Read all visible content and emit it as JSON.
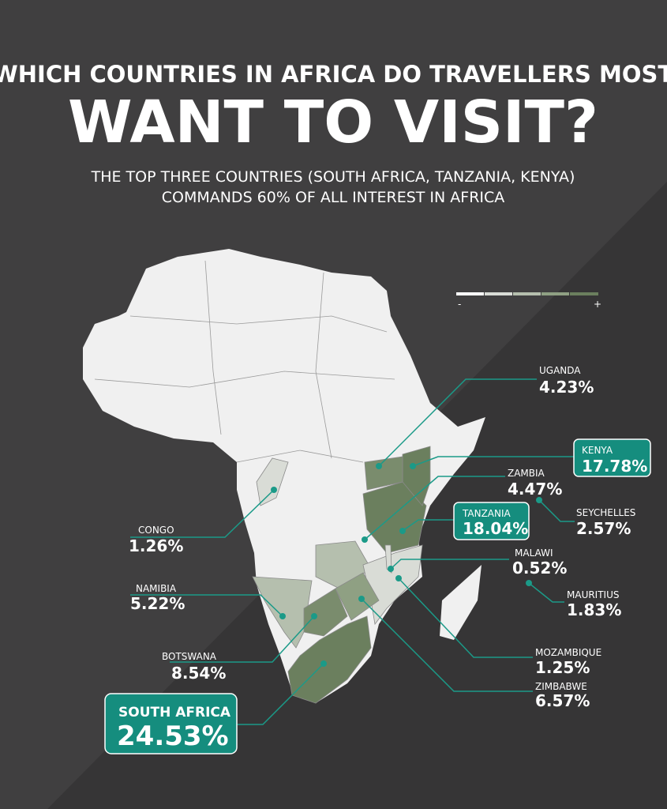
{
  "header": {
    "title": "WHICH COUNTRIES IN AFRICA DO TRAVELLERS MOST",
    "headline": "WANT TO VISIT?",
    "subtitle": [
      "THE TOP THREE COUNTRIES (SOUTH AFRICA, TANZANIA, KENYA)",
      "COMMANDS 60% OF ALL INTEREST IN AFRICA"
    ]
  },
  "legend": {
    "low": "-",
    "high": "+"
  },
  "countries": [
    {
      "name": "UGANDA",
      "share": "4.23%"
    },
    {
      "name": "KENYA",
      "share": "17.78%"
    },
    {
      "name": "ZAMBIA",
      "share": "4.47%"
    },
    {
      "name": "SEYCHELLES",
      "share": "2.57%"
    },
    {
      "name": "TANZANIA",
      "share": "18.04%"
    },
    {
      "name": "CONGO",
      "share": "1.26%"
    },
    {
      "name": "MALAWI",
      "share": "0.52%"
    },
    {
      "name": "MAURITIUS",
      "share": "1.83%"
    },
    {
      "name": "NAMIBIA",
      "share": "5.22%"
    },
    {
      "name": "MOZAMBIQUE",
      "share": "1.25%"
    },
    {
      "name": "BOTSWANA",
      "share": "8.54%"
    },
    {
      "name": "ZIMBABWE",
      "share": "6.57%"
    },
    {
      "name": "SOUTH AFRICA",
      "share": "24.53%"
    }
  ]
}
